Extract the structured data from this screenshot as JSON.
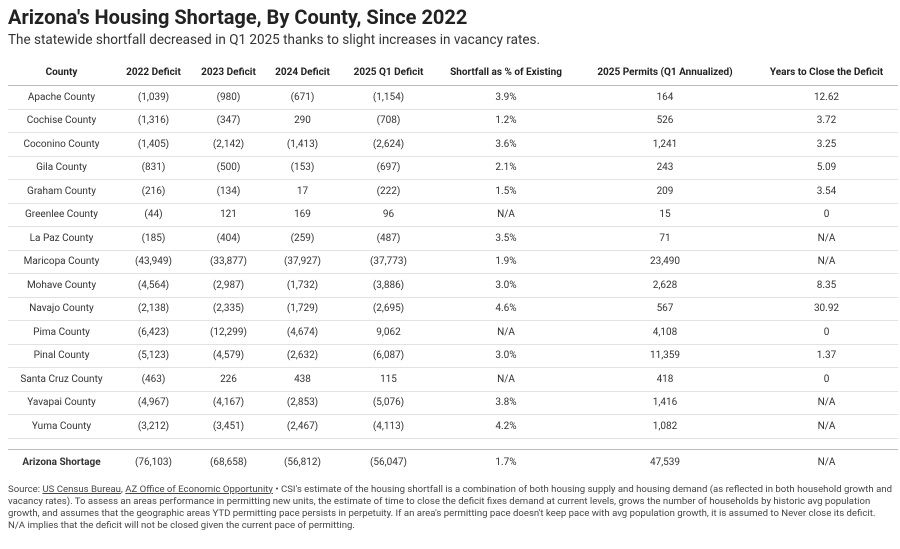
{
  "header": {
    "title": "Arizona's Housing Shortage, By County, Since 2022",
    "subtitle": "The statewide shortfall decreased in Q1 2025 thanks to slight increases in vacancy rates."
  },
  "table": {
    "columns": [
      "County",
      "2022 Deficit",
      "2023 Deficit",
      "2024 Deficit",
      "2025 Q1 Deficit",
      "Shortfall as % of Existing",
      "2025 Permits (Q1 Annualized)",
      "Years to Close the Deficit"
    ],
    "rows": [
      [
        "Apache County",
        "(1,039)",
        "(980)",
        "(671)",
        "(1,154)",
        "3.9%",
        "164",
        "12.62"
      ],
      [
        "Cochise County",
        "(1,316)",
        "(347)",
        "290",
        "(708)",
        "1.2%",
        "526",
        "3.72"
      ],
      [
        "Coconino County",
        "(1,405)",
        "(2,142)",
        "(1,413)",
        "(2,624)",
        "3.6%",
        "1,241",
        "3.25"
      ],
      [
        "Gila County",
        "(831)",
        "(500)",
        "(153)",
        "(697)",
        "2.1%",
        "243",
        "5.09"
      ],
      [
        "Graham County",
        "(216)",
        "(134)",
        "17",
        "(222)",
        "1.5%",
        "209",
        "3.54"
      ],
      [
        "Greenlee County",
        "(44)",
        "121",
        "169",
        "96",
        "N/A",
        "15",
        "0"
      ],
      [
        "La Paz County",
        "(185)",
        "(404)",
        "(259)",
        "(487)",
        "3.5%",
        "71",
        "N/A"
      ],
      [
        "Maricopa County",
        "(43,949)",
        "(33,877)",
        "(37,927)",
        "(37,773)",
        "1.9%",
        "23,490",
        "N/A"
      ],
      [
        "Mohave County",
        "(4,564)",
        "(2,987)",
        "(1,732)",
        "(3,886)",
        "3.0%",
        "2,628",
        "8.35"
      ],
      [
        "Navajo County",
        "(2,138)",
        "(2,335)",
        "(1,729)",
        "(2,695)",
        "4.6%",
        "567",
        "30.92"
      ],
      [
        "Pima County",
        "(6,423)",
        "(12,299)",
        "(4,674)",
        "9,062",
        "N/A",
        "4,108",
        "0"
      ],
      [
        "Pinal County",
        "(5,123)",
        "(4,579)",
        "(2,632)",
        "(6,087)",
        "3.0%",
        "11,359",
        "1.37"
      ],
      [
        "Santa Cruz County",
        "(463)",
        "226",
        "438",
        "115",
        "N/A",
        "418",
        "0"
      ],
      [
        "Yavapai County",
        "(4,967)",
        "(4,167)",
        "(2,853)",
        "(5,076)",
        "3.8%",
        "1,416",
        "N/A"
      ],
      [
        "Yuma County",
        "(3,212)",
        "(3,451)",
        "(2,467)",
        "(4,113)",
        "4.2%",
        "1,082",
        "N/A"
      ]
    ],
    "total": [
      "Arizona Shortage",
      "(76,103)",
      "(68,658)",
      "(56,812)",
      "(56,047)",
      "1.7%",
      "47,539",
      "N/A"
    ]
  },
  "footer": {
    "prefix": "Source:",
    "links": [
      "US Census Bureau",
      "AZ Office of Economic Opportunity"
    ],
    "separator": ",",
    "note": "• CSI's estimate of the housing shortfall is a combination of both housing supply and housing demand (as reflected in both household growth and vacancy rates). To assess an areas performance in permitting new units, the estimate of time to close the deficit fixes demand at current levels, grows the number of households by historic avg population growth, and assumes that the geographic areas YTD permitting pace persists in perpetuity. If an area's permitting pace doesn't keep pace with avg population growth, it is assumed to Never close its deficit.",
    "na_note": "N/A implies that the deficit will not be closed given the current pace of permitting."
  }
}
